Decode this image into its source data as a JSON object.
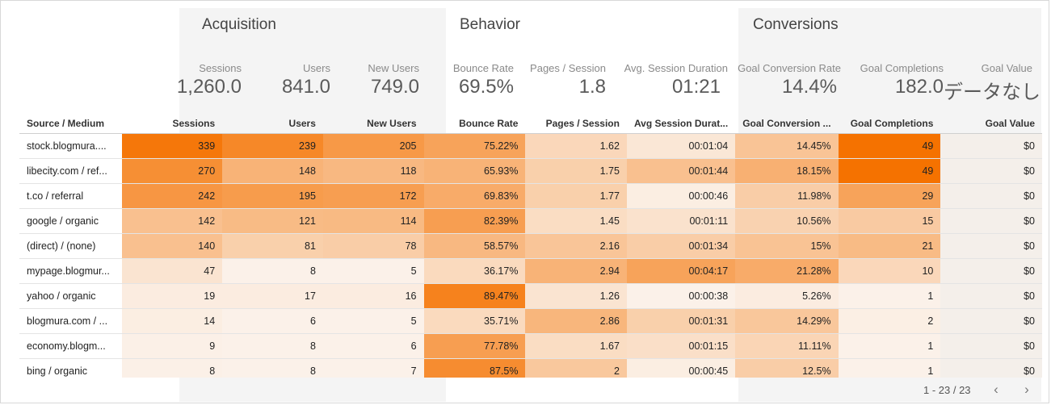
{
  "groups": {
    "acquisition": "Acquisition",
    "behavior": "Behavior",
    "conversions": "Conversions"
  },
  "kpis": [
    {
      "label": "Sessions",
      "value": "1,260.0"
    },
    {
      "label": "Users",
      "value": "841.0"
    },
    {
      "label": "New Users",
      "value": "749.0"
    },
    {
      "label": "Bounce Rate",
      "value": "69.5%"
    },
    {
      "label": "Pages / Session",
      "value": "1.8"
    },
    {
      "label": "Avg. Session Duration",
      "value": "01:21"
    },
    {
      "label": "Goal Conversion Rate",
      "value": "14.4%"
    },
    {
      "label": "Goal Completions",
      "value": "182.0"
    },
    {
      "label": "Goal Value",
      "value": "データなし"
    }
  ],
  "table": {
    "headers": [
      "Source / Medium",
      "Sessions",
      "Users",
      "New Users",
      "Bounce Rate",
      "Pages / Session",
      "Avg Session Durat...",
      "Goal Conversion ...",
      "Goal Completions",
      "Goal Value"
    ],
    "rows": [
      [
        "stock.blogmura....",
        "339",
        "239",
        "205",
        "75.22%",
        "1.62",
        "00:01:04",
        "14.45%",
        "49",
        "$0"
      ],
      [
        "libecity.com / ref...",
        "270",
        "148",
        "118",
        "65.93%",
        "1.75",
        "00:01:44",
        "18.15%",
        "49",
        "$0"
      ],
      [
        "t.co / referral",
        "242",
        "195",
        "172",
        "69.83%",
        "1.77",
        "00:00:46",
        "11.98%",
        "29",
        "$0"
      ],
      [
        "google / organic",
        "142",
        "121",
        "114",
        "82.39%",
        "1.45",
        "00:01:11",
        "10.56%",
        "15",
        "$0"
      ],
      [
        "(direct) / (none)",
        "140",
        "81",
        "78",
        "58.57%",
        "2.16",
        "00:01:34",
        "15%",
        "21",
        "$0"
      ],
      [
        "mypage.blogmur...",
        "47",
        "8",
        "5",
        "36.17%",
        "2.94",
        "00:04:17",
        "21.28%",
        "10",
        "$0"
      ],
      [
        "yahoo / organic",
        "19",
        "17",
        "16",
        "89.47%",
        "1.26",
        "00:00:38",
        "5.26%",
        "1",
        "$0"
      ],
      [
        "blogmura.com / ...",
        "14",
        "6",
        "5",
        "35.71%",
        "2.86",
        "00:01:31",
        "14.29%",
        "2",
        "$0"
      ],
      [
        "economy.blogm...",
        "9",
        "8",
        "6",
        "77.78%",
        "1.67",
        "00:01:15",
        "11.11%",
        "1",
        "$0"
      ],
      [
        "bing / organic",
        "8",
        "8",
        "7",
        "87.5%",
        "2",
        "00:00:45",
        "12.5%",
        "1",
        "$0"
      ]
    ],
    "heat": [
      [
        0.0,
        0.96,
        0.83,
        0.7,
        0.62,
        0.22,
        0.1,
        0.37,
        1.0,
        0.0
      ],
      [
        0.0,
        0.78,
        0.5,
        0.46,
        0.5,
        0.28,
        0.4,
        0.52,
        1.0,
        0.0
      ],
      [
        0.0,
        0.72,
        0.68,
        0.66,
        0.56,
        0.28,
        0.05,
        0.3,
        0.62,
        0.0
      ],
      [
        0.0,
        0.4,
        0.44,
        0.45,
        0.66,
        0.18,
        0.14,
        0.26,
        0.32,
        0.0
      ],
      [
        0.0,
        0.4,
        0.28,
        0.3,
        0.46,
        0.36,
        0.3,
        0.38,
        0.44,
        0.0
      ],
      [
        0.0,
        0.12,
        0.02,
        0.02,
        0.2,
        0.5,
        0.62,
        0.56,
        0.22,
        0.0
      ],
      [
        0.0,
        0.06,
        0.06,
        0.06,
        0.88,
        0.12,
        0.02,
        0.06,
        0.02,
        0.0
      ],
      [
        0.0,
        0.05,
        0.02,
        0.02,
        0.2,
        0.48,
        0.28,
        0.35,
        0.04,
        0.0
      ],
      [
        0.0,
        0.03,
        0.02,
        0.02,
        0.66,
        0.18,
        0.16,
        0.24,
        0.02,
        0.0
      ],
      [
        0.0,
        0.03,
        0.02,
        0.02,
        0.8,
        0.34,
        0.05,
        0.3,
        0.02,
        0.0
      ]
    ]
  },
  "pager": {
    "range": "1 - 23 / 23",
    "prev_icon": "chevron-left-icon",
    "next_icon": "chevron-right-icon"
  },
  "colors": {
    "accent": "#f57c00",
    "band": "#f4f4f4",
    "heat_low": "#fbf4ee",
    "heat_high": "#f57200"
  }
}
